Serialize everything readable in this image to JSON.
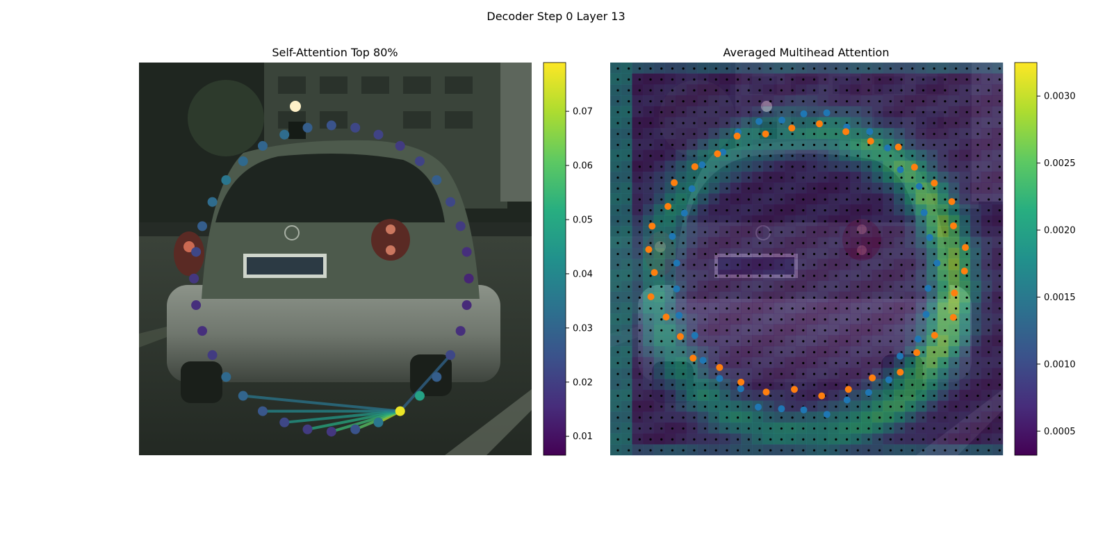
{
  "figure": {
    "suptitle": "Decoder Step 0 Layer 13"
  },
  "colormap": "viridis",
  "chart_data": [
    {
      "type": "scatter",
      "title": "Self-Attention Top 80%",
      "background": "street scene: rear view of a silver hatchback car on a road",
      "colorbar": {
        "range": [
          0.0065,
          0.079
        ],
        "ticks": [
          0.01,
          0.02,
          0.03,
          0.04,
          0.05,
          0.06,
          0.07
        ],
        "tick_labels": [
          "0.01",
          "0.02",
          "0.03",
          "0.04",
          "0.05",
          "0.06",
          "0.07"
        ]
      },
      "points_note": "36 attention query points on a ring, colored by attention value",
      "values": [
        0.018,
        0.019,
        0.022,
        0.026,
        0.03,
        0.031,
        0.019,
        0.016,
        0.016,
        0.018,
        0.022,
        0.028,
        0.032,
        0.035,
        0.031,
        0.03,
        0.032,
        0.028,
        0.025,
        0.022,
        0.021,
        0.019,
        0.021,
        0.028,
        0.022,
        0.019,
        0.016,
        0.014,
        0.015,
        0.016,
        0.022,
        0.028,
        0.048,
        0.077,
        0.035,
        0.025
      ],
      "source_point_index": 33,
      "attention_links": [
        {
          "to_index": 34,
          "value": 0.072
        },
        {
          "to_index": 35,
          "value": 0.06
        },
        {
          "to_index": 0,
          "value": 0.055
        },
        {
          "to_index": 1,
          "value": 0.05
        },
        {
          "to_index": 2,
          "value": 0.045
        },
        {
          "to_index": 3,
          "value": 0.04
        },
        {
          "to_index": 4,
          "value": 0.035
        },
        {
          "to_index": 30,
          "value": 0.03
        }
      ]
    },
    {
      "type": "heatmap",
      "title": "Averaged Multihead Attention",
      "background": "same street scene, dimmed under a 36x36 attention heatmap with a grid of black reference dots",
      "colorbar": {
        "range": [
          0.00032,
          0.00325
        ],
        "ticks": [
          0.0005,
          0.001,
          0.0015,
          0.002,
          0.0025,
          0.003
        ],
        "tick_labels": [
          "0.0005",
          "0.0010",
          "0.0015",
          "0.0020",
          "0.0025",
          "0.0030"
        ]
      },
      "grid_size": [
        36,
        36
      ],
      "attention_profile": "high along an outer ring band (peaks on the right side), low in the interior",
      "series": [
        {
          "kind": "inner ring points",
          "color": "#1f77b4",
          "count": 36
        },
        {
          "kind": "outer ring points",
          "color": "#ff7f0e",
          "count": 36
        }
      ]
    }
  ]
}
